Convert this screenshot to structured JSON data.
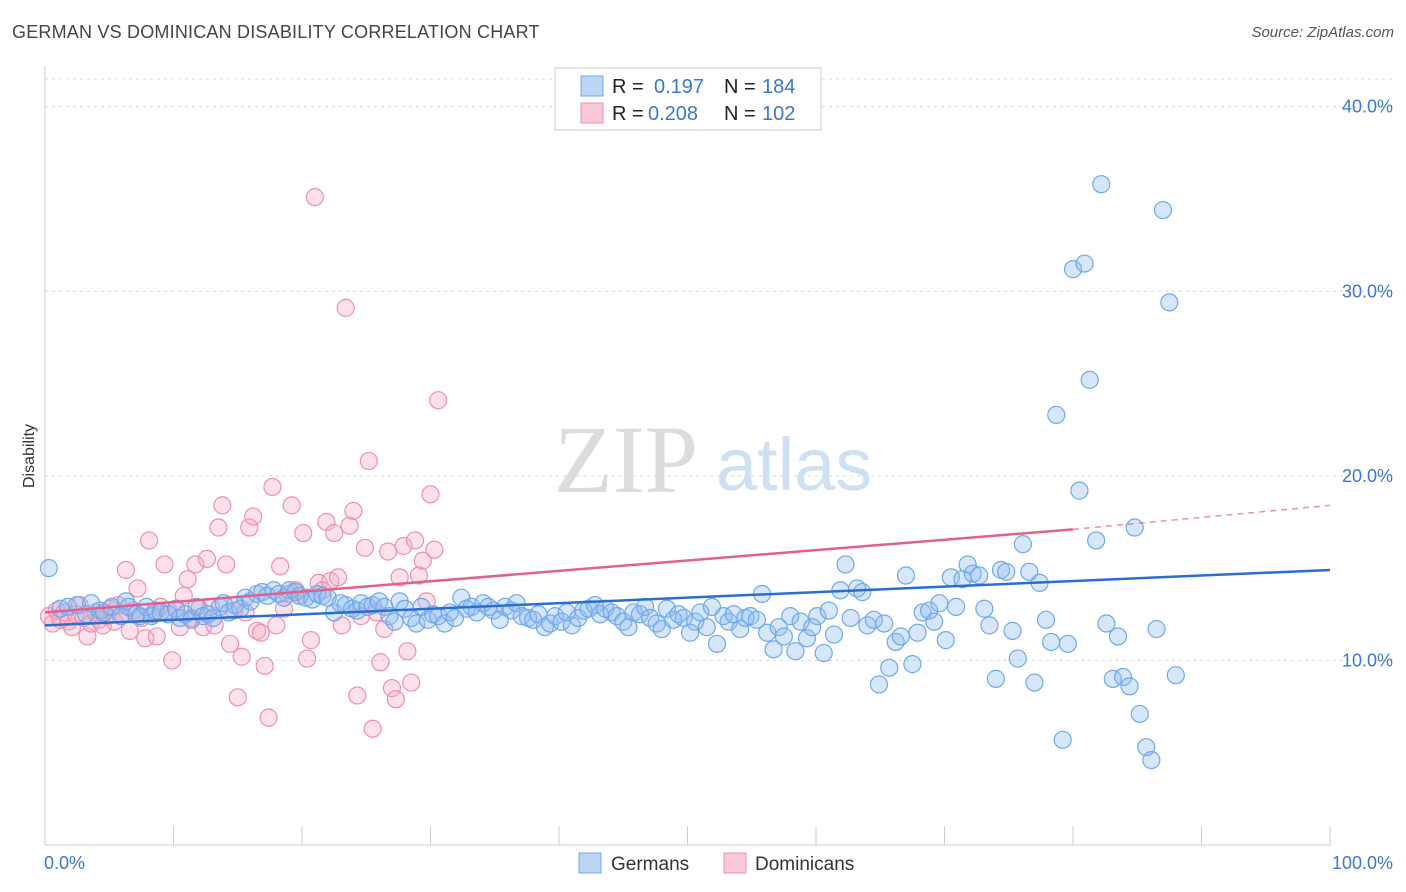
{
  "header": {
    "title": "GERMAN VS DOMINICAN DISABILITY CORRELATION CHART",
    "source": "Source: ZipAtlas.com"
  },
  "watermark": {
    "zip": "ZIP",
    "atlas": "atlas"
  },
  "colors": {
    "germans": "#6fa8ec",
    "germans_fill": "rgba(140,185,240,0.35)",
    "germans_line": "#2a6fd0",
    "dominicans": "#ee8fb0",
    "dominicans_fill": "rgba(245,170,195,0.35)",
    "dominicans_line": "#e0608e"
  },
  "legend": {
    "rows": [
      {
        "r_label": "R =",
        "r_value": "0.197",
        "n_label": "N =",
        "n_value": "184"
      },
      {
        "r_label": "R =",
        "r_value": "0.208",
        "n_label": "N =",
        "n_value": "102"
      }
    ]
  },
  "chart_data": {
    "type": "scatter",
    "title": "GERMAN VS DOMINICAN DISABILITY CORRELATION CHART",
    "xlabel": "",
    "ylabel": "Disability",
    "xlim": [
      0,
      100
    ],
    "ylim": [
      0,
      41.5
    ],
    "x_tick_labels": [
      "0.0%",
      "100.0%"
    ],
    "y_ticks": [
      10,
      20,
      30,
      40
    ],
    "y_tick_labels": [
      "10.0%",
      "20.0%",
      "30.0%",
      "40.0%"
    ],
    "grid": true,
    "legend_position": "top-center",
    "series": [
      {
        "name": "Germans",
        "trend": {
          "x": [
            0,
            100
          ],
          "y": [
            11.9,
            14.9
          ]
        },
        "points": [
          [
            0.3,
            15.0
          ],
          [
            1.2,
            12.8
          ],
          [
            1.8,
            12.9
          ],
          [
            2.5,
            13.0
          ],
          [
            3.2,
            12.5
          ],
          [
            3.6,
            13.1
          ],
          [
            4.3,
            12.7
          ],
          [
            4.6,
            12.6
          ],
          [
            5.2,
            12.9
          ],
          [
            5.9,
            12.4
          ],
          [
            6.3,
            13.2
          ],
          [
            6.5,
            12.9
          ],
          [
            7.1,
            12.5
          ],
          [
            7.4,
            12.4
          ],
          [
            7.9,
            12.9
          ],
          [
            8.3,
            12.4
          ],
          [
            8.6,
            12.7
          ],
          [
            9.0,
            12.6
          ],
          [
            9.6,
            12.5
          ],
          [
            10.2,
            12.8
          ],
          [
            10.5,
            12.3
          ],
          [
            10.9,
            12.5
          ],
          [
            11.4,
            12.2
          ],
          [
            11.8,
            12.9
          ],
          [
            12.3,
            12.4
          ],
          [
            12.7,
            12.5
          ],
          [
            13.1,
            12.3
          ],
          [
            13.6,
            12.9
          ],
          [
            13.9,
            13.1
          ],
          [
            14.3,
            12.6
          ],
          [
            14.8,
            13.0
          ],
          [
            15.2,
            12.8
          ],
          [
            15.6,
            13.4
          ],
          [
            16.0,
            13.2
          ],
          [
            16.5,
            13.6
          ],
          [
            16.9,
            13.7
          ],
          [
            17.3,
            13.5
          ],
          [
            17.8,
            13.8
          ],
          [
            18.2,
            13.6
          ],
          [
            18.6,
            13.4
          ],
          [
            19.0,
            13.8
          ],
          [
            19.5,
            13.7
          ],
          [
            19.8,
            13.5
          ],
          [
            20.3,
            13.4
          ],
          [
            20.8,
            13.3
          ],
          [
            21.2,
            13.6
          ],
          [
            21.6,
            13.5
          ],
          [
            22.0,
            13.4
          ],
          [
            22.5,
            12.6
          ],
          [
            23.0,
            13.1
          ],
          [
            23.4,
            13.0
          ],
          [
            23.9,
            12.8
          ],
          [
            24.3,
            12.7
          ],
          [
            24.6,
            13.1
          ],
          [
            25.1,
            12.9
          ],
          [
            25.5,
            13.0
          ],
          [
            26.0,
            13.2
          ],
          [
            26.4,
            12.9
          ],
          [
            26.8,
            12.4
          ],
          [
            27.2,
            12.1
          ],
          [
            27.6,
            13.2
          ],
          [
            28.0,
            12.8
          ],
          [
            28.5,
            12.3
          ],
          [
            28.9,
            12.0
          ],
          [
            29.3,
            12.9
          ],
          [
            29.8,
            12.2
          ],
          [
            30.2,
            12.5
          ],
          [
            30.6,
            12.4
          ],
          [
            31.1,
            12.0
          ],
          [
            31.5,
            12.6
          ],
          [
            31.9,
            12.3
          ],
          [
            32.4,
            13.4
          ],
          [
            32.8,
            12.8
          ],
          [
            33.2,
            12.9
          ],
          [
            33.6,
            12.6
          ],
          [
            34.1,
            13.1
          ],
          [
            34.5,
            12.9
          ],
          [
            34.9,
            12.7
          ],
          [
            35.4,
            12.2
          ],
          [
            35.8,
            12.9
          ],
          [
            36.3,
            12.7
          ],
          [
            36.7,
            13.1
          ],
          [
            37.1,
            12.4
          ],
          [
            37.6,
            12.3
          ],
          [
            38.0,
            12.2
          ],
          [
            38.4,
            12.5
          ],
          [
            38.9,
            11.8
          ],
          [
            39.3,
            12.0
          ],
          [
            39.7,
            12.4
          ],
          [
            40.2,
            12.1
          ],
          [
            40.6,
            12.6
          ],
          [
            41.0,
            11.9
          ],
          [
            41.5,
            12.3
          ],
          [
            41.9,
            12.7
          ],
          [
            42.3,
            12.8
          ],
          [
            42.8,
            13.0
          ],
          [
            43.2,
            12.5
          ],
          [
            43.6,
            12.8
          ],
          [
            44.1,
            12.6
          ],
          [
            44.5,
            12.4
          ],
          [
            45.0,
            12.1
          ],
          [
            45.4,
            11.8
          ],
          [
            45.8,
            12.6
          ],
          [
            46.3,
            12.5
          ],
          [
            46.7,
            12.9
          ],
          [
            47.1,
            12.3
          ],
          [
            47.6,
            12.0
          ],
          [
            48.0,
            11.7
          ],
          [
            48.4,
            12.8
          ],
          [
            48.9,
            12.2
          ],
          [
            49.3,
            12.5
          ],
          [
            49.7,
            12.3
          ],
          [
            50.2,
            11.5
          ],
          [
            50.6,
            12.1
          ],
          [
            51.0,
            12.6
          ],
          [
            51.5,
            11.8
          ],
          [
            51.9,
            12.9
          ],
          [
            52.3,
            10.9
          ],
          [
            52.8,
            12.4
          ],
          [
            53.2,
            12.1
          ],
          [
            53.6,
            12.5
          ],
          [
            54.1,
            11.7
          ],
          [
            54.5,
            12.3
          ],
          [
            54.9,
            12.4
          ],
          [
            55.4,
            12.2
          ],
          [
            55.8,
            13.6
          ],
          [
            56.2,
            11.5
          ],
          [
            56.7,
            10.6
          ],
          [
            57.1,
            11.8
          ],
          [
            57.5,
            11.3
          ],
          [
            58.0,
            12.4
          ],
          [
            58.4,
            10.5
          ],
          [
            58.8,
            12.1
          ],
          [
            59.3,
            11.2
          ],
          [
            59.7,
            11.8
          ],
          [
            60.1,
            12.4
          ],
          [
            60.6,
            10.4
          ],
          [
            61.0,
            12.7
          ],
          [
            61.4,
            11.4
          ],
          [
            61.9,
            13.8
          ],
          [
            62.3,
            15.2
          ],
          [
            62.7,
            12.3
          ],
          [
            63.2,
            13.9
          ],
          [
            63.6,
            13.7
          ],
          [
            64.0,
            11.9
          ],
          [
            64.5,
            12.2
          ],
          [
            64.9,
            8.7
          ],
          [
            65.3,
            12.0
          ],
          [
            65.7,
            9.6
          ],
          [
            66.2,
            11.0
          ],
          [
            66.6,
            11.3
          ],
          [
            67.0,
            14.6
          ],
          [
            67.5,
            9.8
          ],
          [
            67.9,
            11.5
          ],
          [
            68.3,
            12.6
          ],
          [
            68.8,
            12.7
          ],
          [
            69.2,
            12.1
          ],
          [
            69.6,
            13.1
          ],
          [
            70.1,
            11.1
          ],
          [
            70.5,
            14.5
          ],
          [
            70.9,
            12.9
          ],
          [
            71.4,
            14.4
          ],
          [
            71.8,
            15.2
          ],
          [
            72.2,
            14.7
          ],
          [
            72.7,
            14.6
          ],
          [
            73.1,
            12.8
          ],
          [
            73.5,
            11.9
          ],
          [
            74.0,
            9.0
          ],
          [
            74.4,
            14.9
          ],
          [
            74.8,
            14.8
          ],
          [
            75.3,
            11.6
          ],
          [
            75.7,
            10.1
          ],
          [
            76.1,
            16.3
          ],
          [
            76.6,
            14.8
          ],
          [
            77.0,
            8.8
          ],
          [
            77.4,
            14.2
          ],
          [
            77.9,
            12.2
          ],
          [
            78.3,
            11.0
          ],
          [
            78.7,
            23.3
          ],
          [
            79.2,
            5.7
          ],
          [
            79.6,
            10.9
          ],
          [
            80.0,
            31.2
          ],
          [
            80.5,
            19.2
          ],
          [
            80.9,
            31.5
          ],
          [
            81.3,
            25.2
          ],
          [
            81.8,
            16.5
          ],
          [
            82.2,
            35.8
          ],
          [
            82.6,
            12.0
          ],
          [
            83.1,
            9.0
          ],
          [
            83.5,
            11.3
          ],
          [
            83.9,
            9.1
          ],
          [
            84.4,
            8.6
          ],
          [
            84.8,
            17.2
          ],
          [
            85.2,
            7.1
          ],
          [
            85.7,
            5.3
          ],
          [
            86.1,
            4.6
          ],
          [
            86.5,
            11.7
          ],
          [
            87.0,
            34.4
          ],
          [
            87.5,
            29.4
          ],
          [
            88.0,
            9.2
          ]
        ]
      },
      {
        "name": "Dominicans",
        "trend": {
          "x": [
            0,
            80
          ],
          "y": [
            12.6,
            17.1
          ]
        },
        "trend_dashed": {
          "x": [
            80,
            100
          ],
          "y": [
            17.1,
            18.4
          ]
        },
        "points": [
          [
            0.3,
            12.4
          ],
          [
            0.6,
            12.0
          ],
          [
            0.9,
            12.7
          ],
          [
            1.2,
            12.2
          ],
          [
            1.5,
            12.6
          ],
          [
            1.8,
            12.1
          ],
          [
            2.1,
            11.8
          ],
          [
            2.4,
            12.5
          ],
          [
            2.7,
            13.0
          ],
          [
            3.0,
            12.3
          ],
          [
            3.3,
            11.3
          ],
          [
            3.6,
            12.0
          ],
          [
            3.9,
            12.6
          ],
          [
            4.2,
            12.2
          ],
          [
            4.5,
            11.9
          ],
          [
            4.8,
            12.4
          ],
          [
            5.1,
            12.8
          ],
          [
            5.4,
            12.1
          ],
          [
            5.7,
            13.0
          ],
          [
            6.0,
            12.5
          ],
          [
            6.3,
            14.9
          ],
          [
            6.6,
            11.6
          ],
          [
            6.9,
            12.7
          ],
          [
            7.2,
            13.9
          ],
          [
            7.5,
            12.3
          ],
          [
            7.8,
            11.2
          ],
          [
            8.1,
            16.5
          ],
          [
            8.4,
            12.5
          ],
          [
            8.7,
            11.3
          ],
          [
            9.0,
            12.9
          ],
          [
            9.3,
            15.2
          ],
          [
            9.6,
            12.7
          ],
          [
            9.9,
            10.0
          ],
          [
            10.2,
            12.8
          ],
          [
            10.5,
            11.8
          ],
          [
            10.8,
            13.5
          ],
          [
            11.1,
            14.4
          ],
          [
            11.4,
            12.3
          ],
          [
            11.7,
            15.2
          ],
          [
            12.0,
            12.8
          ],
          [
            12.3,
            11.8
          ],
          [
            12.6,
            15.5
          ],
          [
            12.9,
            12.9
          ],
          [
            13.2,
            11.9
          ],
          [
            13.5,
            17.2
          ],
          [
            13.8,
            18.4
          ],
          [
            14.1,
            15.2
          ],
          [
            14.4,
            10.9
          ],
          [
            14.7,
            12.7
          ],
          [
            15.0,
            8.0
          ],
          [
            15.3,
            10.2
          ],
          [
            15.6,
            12.6
          ],
          [
            15.9,
            17.2
          ],
          [
            16.2,
            17.8
          ],
          [
            16.5,
            11.6
          ],
          [
            16.8,
            11.5
          ],
          [
            17.1,
            9.7
          ],
          [
            17.4,
            6.9
          ],
          [
            17.7,
            19.4
          ],
          [
            18.0,
            11.9
          ],
          [
            18.3,
            15.1
          ],
          [
            18.6,
            12.8
          ],
          [
            18.9,
            13.6
          ],
          [
            19.2,
            18.4
          ],
          [
            19.5,
            13.8
          ],
          [
            19.8,
            13.5
          ],
          [
            20.1,
            16.9
          ],
          [
            20.4,
            10.1
          ],
          [
            20.7,
            11.1
          ],
          [
            21.0,
            35.1
          ],
          [
            21.3,
            14.2
          ],
          [
            21.6,
            13.8
          ],
          [
            21.9,
            17.5
          ],
          [
            22.2,
            14.3
          ],
          [
            22.5,
            16.9
          ],
          [
            22.8,
            14.5
          ],
          [
            23.1,
            11.9
          ],
          [
            23.4,
            29.1
          ],
          [
            23.7,
            17.3
          ],
          [
            24.0,
            18.1
          ],
          [
            24.3,
            8.1
          ],
          [
            24.6,
            12.4
          ],
          [
            24.9,
            16.1
          ],
          [
            25.2,
            20.8
          ],
          [
            25.5,
            6.3
          ],
          [
            25.8,
            12.6
          ],
          [
            26.1,
            9.9
          ],
          [
            26.4,
            11.7
          ],
          [
            26.7,
            15.9
          ],
          [
            27.0,
            8.5
          ],
          [
            27.3,
            7.9
          ],
          [
            27.6,
            14.5
          ],
          [
            27.9,
            16.2
          ],
          [
            28.2,
            10.5
          ],
          [
            28.5,
            8.8
          ],
          [
            28.8,
            16.5
          ],
          [
            29.1,
            14.6
          ],
          [
            29.4,
            15.4
          ],
          [
            29.7,
            13.2
          ],
          [
            30.0,
            19.0
          ],
          [
            30.3,
            16.0
          ],
          [
            30.6,
            24.1
          ]
        ]
      }
    ]
  },
  "bottom_legend": [
    "Germans",
    "Dominicans"
  ]
}
